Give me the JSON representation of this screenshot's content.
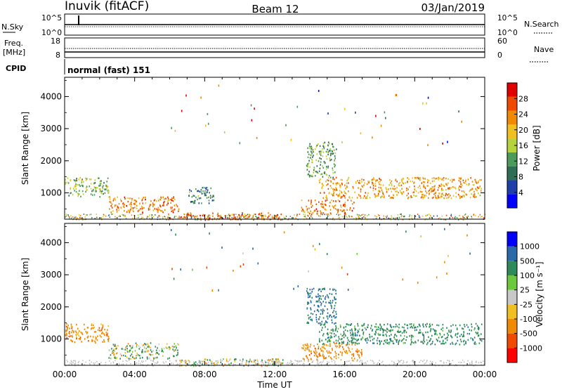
{
  "header": {
    "site": "Inuvik (fitACF)",
    "beam": "Beam 12",
    "date": "03/Jan/2019"
  },
  "noise_panel": {
    "left_label": "N.Sky",
    "right_label": "N.Search",
    "left_ticks": [
      "10^5",
      "10^0"
    ],
    "right_ticks": [
      "10^5",
      "10^0"
    ]
  },
  "freq_panel": {
    "left_label_1": "Freq.",
    "left_label_2": "[MHz]",
    "right_label": "Nave",
    "left_ticks": [
      "18",
      "8"
    ],
    "right_ticks": [
      "60",
      "0"
    ]
  },
  "cpid": {
    "label": "CPID",
    "mode": "normal (fast) 151"
  },
  "colors": {
    "power_scale": [
      "#0000ff",
      "#1e3fa8",
      "#2e6e57",
      "#4b9b5a",
      "#b7d33c",
      "#f0c020",
      "#f08a00",
      "#f04a00",
      "#e00000"
    ],
    "velocity_scale": [
      "#ff0000",
      "#f04a00",
      "#f08a00",
      "#f0c020",
      "#c8c8c8",
      "#6cc83c",
      "#2e8a5a",
      "#2a6aa8",
      "#0000ff"
    ],
    "ground_scatter": "#bfbfbf"
  },
  "chart_data": [
    {
      "type": "heatmap",
      "name": "power",
      "ylabel": "Slant Range [km]",
      "yticks": [
        "1000",
        "2000",
        "3000",
        "4000"
      ],
      "ylim": [
        180,
        4600
      ],
      "xlim": [
        0,
        24
      ],
      "xticks": [
        "00:00",
        "04:00",
        "08:00",
        "12:00",
        "16:00",
        "20:00",
        "00:00"
      ],
      "colorbar_label": "Power [dB]",
      "colorbar_ticks": [
        "4",
        "8",
        "12",
        "16",
        "20",
        "24",
        "28"
      ],
      "colorbar_range": [
        0,
        32
      ],
      "regions": [
        {
          "t0": 0.0,
          "t1": 2.5,
          "r0": 900,
          "r1": 1500,
          "level": 14
        },
        {
          "t0": 2.5,
          "t1": 6.5,
          "r0": 400,
          "r1": 900,
          "level": 24
        },
        {
          "t0": 6.5,
          "t1": 12.5,
          "r0": 180,
          "r1": 400,
          "level": 26
        },
        {
          "t0": 13.5,
          "t1": 16.5,
          "r0": 350,
          "r1": 800,
          "level": 24
        },
        {
          "t0": 14.5,
          "t1": 23.8,
          "r0": 850,
          "r1": 1500,
          "level": 22
        },
        {
          "t0": 13.8,
          "t1": 15.5,
          "r0": 1500,
          "r1": 2600,
          "level": 12
        },
        {
          "t0": 7.0,
          "t1": 8.5,
          "r0": 700,
          "r1": 1200,
          "level": 10
        }
      ]
    },
    {
      "type": "heatmap",
      "name": "velocity",
      "ylabel": "Slant Range [km]",
      "yticks": [
        "1000",
        "2000",
        "3000",
        "4000"
      ],
      "ylim": [
        180,
        4600
      ],
      "xlim": [
        0,
        24
      ],
      "xticks": [
        "00:00",
        "04:00",
        "08:00",
        "12:00",
        "16:00",
        "20:00",
        "00:00"
      ],
      "xlabel": "Time UT",
      "colorbar_label": "Velocity [m s⁻¹]",
      "colorbar_ticks": [
        "1000",
        "500",
        "100",
        "25",
        "-25",
        "-100",
        "-500",
        "-1000"
      ],
      "regions": [
        {
          "t0": 0.0,
          "t1": 2.5,
          "r0": 900,
          "r1": 1500,
          "level": -300
        },
        {
          "t0": 2.5,
          "t1": 6.5,
          "r0": 400,
          "r1": 900,
          "level": 80
        },
        {
          "t0": 6.5,
          "t1": 12.5,
          "r0": 180,
          "r1": 400,
          "level": 50
        },
        {
          "t0": 13.5,
          "t1": 17.0,
          "r0": 350,
          "r1": 900,
          "level": -300
        },
        {
          "t0": 14.5,
          "t1": 23.8,
          "r0": 850,
          "r1": 1500,
          "level": 300
        },
        {
          "t0": 13.8,
          "t1": 15.5,
          "r0": 1500,
          "r1": 2600,
          "level": 600
        }
      ]
    }
  ]
}
